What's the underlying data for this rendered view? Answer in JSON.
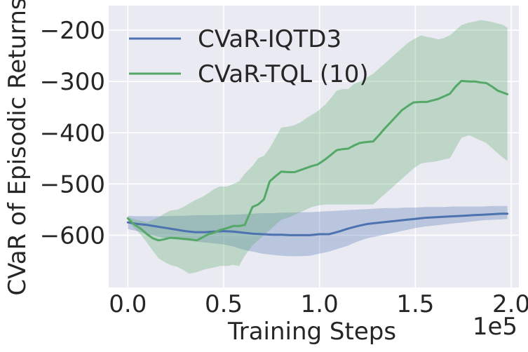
{
  "chart_data": {
    "type": "line",
    "title": "",
    "xlabel": "Training Steps",
    "ylabel": "CVaR of Episodic Returns",
    "x_offset_label": "1e5",
    "xlim": [
      -0.1,
      2.04
    ],
    "ylim": [
      -702,
      -152
    ],
    "xticks": [
      0.0,
      0.5,
      1.0,
      1.5,
      2.0
    ],
    "xtick_labels": [
      "0.0",
      "0.5",
      "1.0",
      "1.5",
      "2.0"
    ],
    "yticks": [
      -600,
      -500,
      -400,
      -300,
      -200
    ],
    "ytick_labels": [
      "−600",
      "−500",
      "−400",
      "−300",
      "−200"
    ],
    "grid": true,
    "legend_position": "upper-left",
    "series": [
      {
        "name": "CVaR-IQTD3",
        "color": "#4c72b0",
        "x": [
          0.0,
          0.05,
          0.1,
          0.15,
          0.2,
          0.25,
          0.3,
          0.35,
          0.4,
          0.45,
          0.5,
          0.55,
          0.6,
          0.65,
          0.7,
          0.75,
          0.8,
          0.85,
          0.9,
          0.95,
          1.0,
          1.05,
          1.1,
          1.15,
          1.2,
          1.25,
          1.3,
          1.35,
          1.4,
          1.45,
          1.5,
          1.55,
          1.6,
          1.65,
          1.7,
          1.75,
          1.8,
          1.85,
          1.9,
          1.95,
          1.98
        ],
        "y": [
          -575,
          -578,
          -580,
          -583,
          -586,
          -589,
          -592,
          -594,
          -594,
          -593,
          -592,
          -593,
          -595,
          -597,
          -598,
          -599,
          -599,
          -600,
          -600,
          -600,
          -598,
          -598,
          -593,
          -587,
          -582,
          -578,
          -576,
          -574,
          -572,
          -570,
          -568,
          -566,
          -565,
          -564,
          -563,
          -562,
          -561,
          -560,
          -559,
          -558,
          -558
        ],
        "lower": [
          -588,
          -592,
          -598,
          -602,
          -606,
          -608,
          -610,
          -612,
          -614,
          -616,
          -618,
          -622,
          -628,
          -632,
          -636,
          -638,
          -640,
          -641,
          -641,
          -640,
          -636,
          -632,
          -626,
          -620,
          -612,
          -606,
          -602,
          -598,
          -594,
          -590,
          -586,
          -583,
          -581,
          -579,
          -577,
          -575,
          -573,
          -571,
          -570,
          -569,
          -568
        ],
        "upper": [
          -562,
          -563,
          -563,
          -563,
          -563,
          -562,
          -562,
          -561,
          -561,
          -561,
          -560,
          -560,
          -559,
          -558,
          -557,
          -557,
          -556,
          -556,
          -555,
          -555,
          -554,
          -553,
          -552,
          -551,
          -550,
          -549,
          -548,
          -547,
          -547,
          -546,
          -546,
          -545,
          -545,
          -545,
          -544,
          -544,
          -544,
          -544,
          -543,
          -543,
          -543
        ]
      },
      {
        "name": "CVaR-TQL (10)",
        "color": "#55a868",
        "x": [
          0.0,
          0.03,
          0.07,
          0.1,
          0.13,
          0.16,
          0.19,
          0.22,
          0.26,
          0.29,
          0.32,
          0.36,
          0.39,
          0.42,
          0.45,
          0.48,
          0.52,
          0.55,
          0.58,
          0.61,
          0.65,
          0.68,
          0.71,
          0.74,
          0.77,
          0.8,
          0.84,
          0.87,
          0.9,
          0.93,
          0.96,
          0.99,
          1.03,
          1.06,
          1.09,
          1.12,
          1.15,
          1.18,
          1.21,
          1.25,
          1.28,
          1.31,
          1.34,
          1.37,
          1.4,
          1.43,
          1.46,
          1.49,
          1.53,
          1.56,
          1.59,
          1.62,
          1.65,
          1.68,
          1.71,
          1.74,
          1.78,
          1.81,
          1.84,
          1.87,
          1.9,
          1.93,
          1.96,
          1.98
        ],
        "y": [
          -567,
          -578,
          -588,
          -598,
          -606,
          -610,
          -608,
          -605,
          -606,
          -607,
          -608,
          -610,
          -604,
          -598,
          -595,
          -590,
          -586,
          -582,
          -582,
          -580,
          -545,
          -540,
          -530,
          -495,
          -485,
          -476,
          -477,
          -477,
          -473,
          -469,
          -465,
          -462,
          -452,
          -443,
          -434,
          -432,
          -431,
          -425,
          -420,
          -418,
          -417,
          -405,
          -392,
          -380,
          -368,
          -356,
          -348,
          -341,
          -340,
          -340,
          -337,
          -334,
          -329,
          -324,
          -310,
          -299,
          -300,
          -300,
          -302,
          -303,
          -310,
          -318,
          -322,
          -325
        ],
        "lower": [
          -570,
          -585,
          -600,
          -615,
          -630,
          -645,
          -652,
          -658,
          -662,
          -668,
          -675,
          -672,
          -668,
          -665,
          -663,
          -660,
          -660,
          -658,
          -660,
          -640,
          -620,
          -610,
          -600,
          -590,
          -580,
          -570,
          -565,
          -560,
          -555,
          -550,
          -545,
          -542,
          -540,
          -540,
          -540,
          -540,
          -540,
          -540,
          -540,
          -540,
          -540,
          -530,
          -520,
          -510,
          -500,
          -490,
          -480,
          -470,
          -460,
          -458,
          -457,
          -455,
          -452,
          -450,
          -430,
          -410,
          -405,
          -410,
          -415,
          -420,
          -430,
          -440,
          -450,
          -455
        ],
        "upper": [
          -565,
          -568,
          -572,
          -575,
          -570,
          -565,
          -558,
          -552,
          -550,
          -545,
          -538,
          -530,
          -525,
          -518,
          -510,
          -505,
          -505,
          -500,
          -495,
          -480,
          -465,
          -450,
          -445,
          -430,
          -410,
          -390,
          -388,
          -385,
          -380,
          -372,
          -365,
          -358,
          -345,
          -332,
          -318,
          -315,
          -315,
          -305,
          -300,
          -292,
          -285,
          -275,
          -265,
          -255,
          -245,
          -235,
          -225,
          -218,
          -210,
          -213,
          -215,
          -218,
          -215,
          -210,
          -200,
          -190,
          -185,
          -183,
          -180,
          -182,
          -184,
          -187,
          -190,
          -195
        ]
      }
    ]
  }
}
